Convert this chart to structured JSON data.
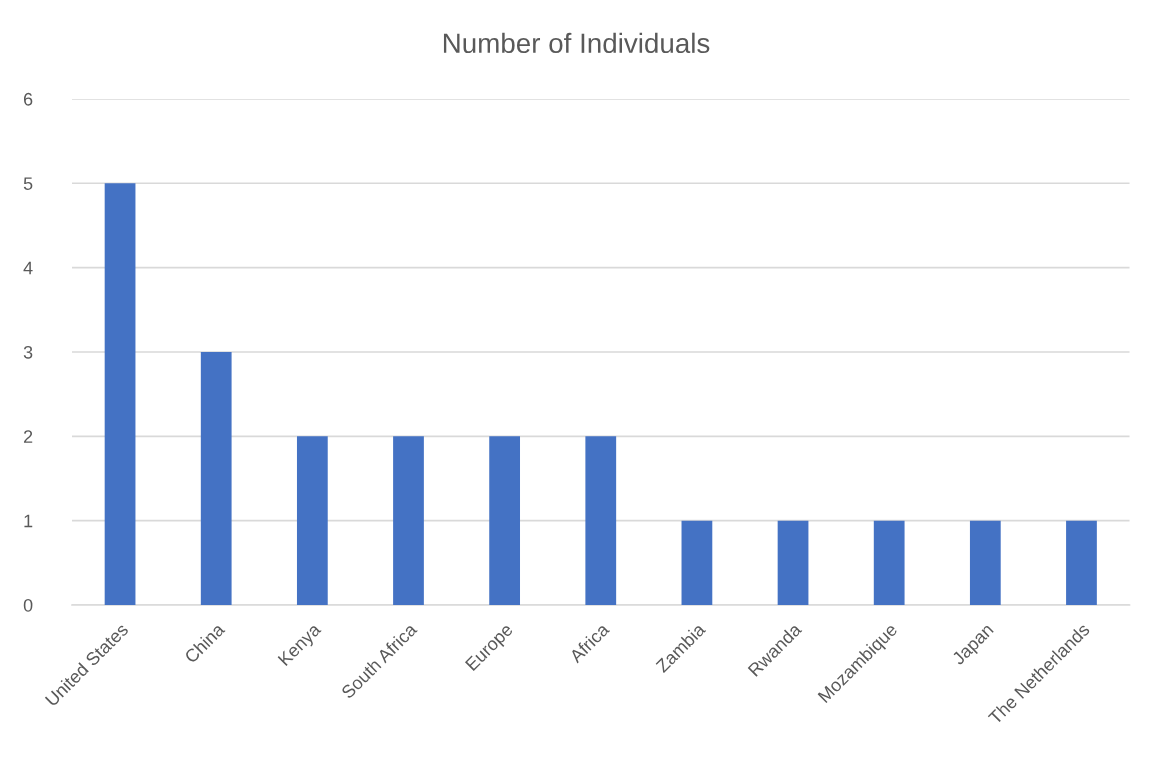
{
  "chart_data": {
    "type": "bar",
    "title": "Number of Individuals",
    "categories": [
      "United States",
      "China",
      "Kenya",
      "South Africa",
      "Europe",
      "Africa",
      "Zambia",
      "Rwanda",
      "Mozambique",
      "Japan",
      "The Netherlands"
    ],
    "values": [
      5,
      3,
      2,
      2,
      2,
      2,
      1,
      1,
      1,
      1,
      1
    ],
    "color": "#4472c4",
    "ylim": [
      0,
      6
    ],
    "yticks": [
      0,
      1,
      2,
      3,
      4,
      5,
      6
    ],
    "grid": "y",
    "legend": false
  }
}
